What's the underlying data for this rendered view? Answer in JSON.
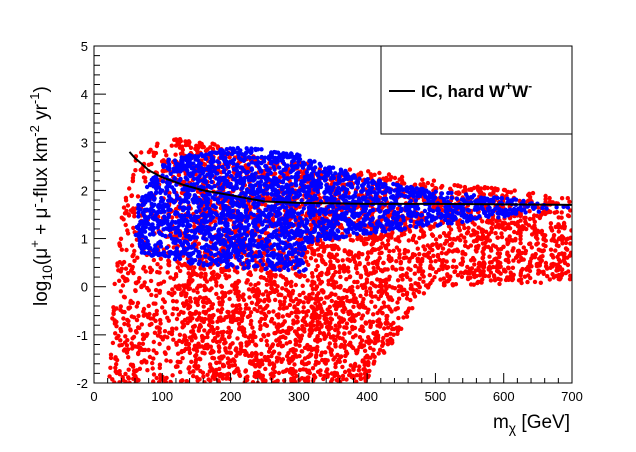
{
  "chart_data": {
    "type": "scatter",
    "xlim": [
      0,
      700
    ],
    "ylim": [
      -2,
      5
    ],
    "x_ticks": [
      0,
      100,
      200,
      300,
      400,
      500,
      600,
      700
    ],
    "y_ticks": [
      -2,
      -1,
      0,
      1,
      2,
      3,
      4,
      5
    ],
    "xlabel": {
      "base": "m",
      "sub": "χ",
      "rest": " [GeV]"
    },
    "ylabel": {
      "pre": "log",
      "sub10": "10",
      "open": "(μ",
      "sup1": "+",
      "mid1": " + μ",
      "sup2": "-",
      "mid2": "-flux km",
      "sup3": "-2",
      "mid3": " yr",
      "sup4": "-1",
      "close": ")"
    },
    "legend": {
      "position": "top-right",
      "entry": {
        "text": "IC, hard W",
        "sup1": "+",
        "mid": "W",
        "sup2": "-"
      }
    },
    "colors": {
      "red_points": "#ff0000",
      "blue_points": "#0000ff",
      "curve": "#000000"
    },
    "series": [
      {
        "name": "IC, hard W+W-",
        "kind": "line",
        "x": [
          52,
          60,
          70,
          80,
          100,
          130,
          160,
          200,
          250,
          300,
          400,
          500,
          600,
          700
        ],
        "y": [
          2.8,
          2.67,
          2.55,
          2.42,
          2.27,
          2.12,
          2.0,
          1.9,
          1.77,
          1.74,
          1.72,
          1.72,
          1.71,
          1.7
        ]
      },
      {
        "kind": "scatter-region",
        "color": "red",
        "polygon": [
          [
            22,
            -2
          ],
          [
            30,
            0.3
          ],
          [
            40,
            1.4
          ],
          [
            50,
            2.2
          ],
          [
            60,
            2.75
          ],
          [
            80,
            2.9
          ],
          [
            110,
            3.1
          ],
          [
            140,
            3.05
          ],
          [
            170,
            3.0
          ],
          [
            200,
            2.8
          ],
          [
            300,
            2.6
          ],
          [
            400,
            2.4
          ],
          [
            500,
            2.2
          ],
          [
            700,
            1.85
          ],
          [
            700,
            0.1
          ],
          [
            600,
            0.05
          ],
          [
            490,
            0.0
          ],
          [
            445,
            -1.0
          ],
          [
            410,
            -1.7
          ],
          [
            400,
            -2
          ]
        ]
      },
      {
        "kind": "scatter-region",
        "color": "blue",
        "polygon": [
          [
            60,
            1.0
          ],
          [
            65,
            1.7
          ],
          [
            75,
            2.0
          ],
          [
            90,
            2.4
          ],
          [
            110,
            2.65
          ],
          [
            140,
            2.75
          ],
          [
            170,
            2.8
          ],
          [
            200,
            2.9
          ],
          [
            250,
            2.85
          ],
          [
            300,
            2.75
          ],
          [
            340,
            2.55
          ],
          [
            400,
            2.25
          ],
          [
            500,
            2.0
          ],
          [
            600,
            1.85
          ],
          [
            700,
            1.65
          ],
          [
            600,
            1.45
          ],
          [
            500,
            1.25
          ],
          [
            400,
            1.1
          ],
          [
            310,
            0.9
          ],
          [
            310,
            0.3
          ],
          [
            150,
            0.45
          ],
          [
            95,
            0.6
          ],
          [
            70,
            0.7
          ]
        ]
      }
    ]
  }
}
